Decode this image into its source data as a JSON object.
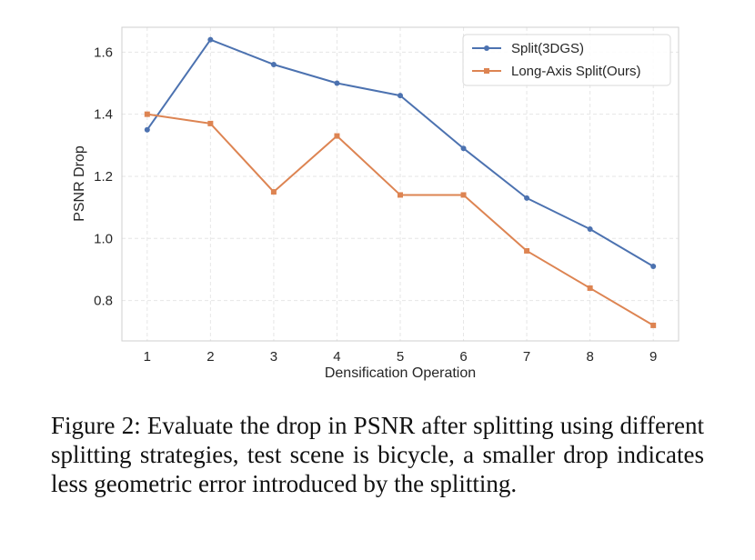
{
  "chart_data": {
    "type": "line",
    "title": "",
    "xlabel": "Densification Operation",
    "ylabel": "PSNR Drop",
    "x": [
      1,
      2,
      3,
      4,
      5,
      6,
      7,
      8,
      9
    ],
    "xticks": [
      "1",
      "2",
      "3",
      "4",
      "5",
      "6",
      "7",
      "8",
      "9"
    ],
    "yticks": [
      "0.8",
      "1.0",
      "1.2",
      "1.4",
      "1.6"
    ],
    "ylim": [
      0.67,
      1.68
    ],
    "xlim": [
      0.6,
      9.4
    ],
    "grid": true,
    "legend_position": "top-right",
    "series": [
      {
        "name": "Split(3DGS)",
        "color": "#4c72b0",
        "marker": "circle",
        "values": [
          1.35,
          1.64,
          1.56,
          1.5,
          1.46,
          1.29,
          1.13,
          1.03,
          0.91
        ]
      },
      {
        "name": "Long-Axis Split(Ours)",
        "color": "#dd8452",
        "marker": "square",
        "values": [
          1.4,
          1.37,
          1.15,
          1.33,
          1.14,
          1.14,
          0.96,
          0.84,
          0.72
        ]
      }
    ]
  },
  "caption": "Figure 2: Evaluate the drop in PSNR after splitting using different splitting strategies, test scene is bicycle, a smaller drop indicates less geometric error introduced by the splitting."
}
